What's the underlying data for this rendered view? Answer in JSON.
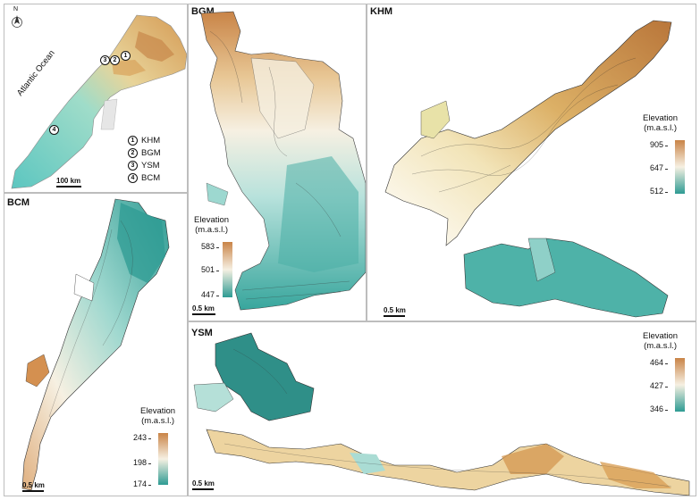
{
  "overview": {
    "north": "N",
    "ocean_label": "Atlantic Ocean",
    "scale": "100 km",
    "sites": [
      {
        "num": "1",
        "code": "KHM"
      },
      {
        "num": "2",
        "code": "BGM"
      },
      {
        "num": "3",
        "code": "YSM"
      },
      {
        "num": "4",
        "code": "BCM"
      }
    ]
  },
  "panels": {
    "bgm": {
      "title": "BGM",
      "scale": "0.5 km",
      "legend": {
        "title": "Elevation\n(m.a.s.l.)",
        "max": "583",
        "mid": "501",
        "min": "447"
      }
    },
    "khm": {
      "title": "KHM",
      "scale": "0.5 km",
      "legend": {
        "title": "Elevation\n(m.a.s.l.)",
        "max": "905",
        "mid": "647",
        "min": "512"
      }
    },
    "bcm": {
      "title": "BCM",
      "scale": "0.5 km",
      "legend": {
        "title": "Elevation\n(m.a.s.l.)",
        "max": "243",
        "mid": "198",
        "min": "174"
      }
    },
    "ysm": {
      "title": "YSM",
      "scale": "0.5 km",
      "legend": {
        "title": "Elevation\n(m.a.s.l.)",
        "max": "464",
        "mid": "427",
        "min": "346"
      }
    }
  },
  "colors": {
    "high": "#c87a3c",
    "mid_high": "#e9c890",
    "mid": "#f7f2e2",
    "mid_low": "#a9ddd6",
    "low": "#2e9b93",
    "low_dark": "#1f7a74",
    "relief_high": "#d9a554",
    "relief_low": "#3fb8b2"
  }
}
